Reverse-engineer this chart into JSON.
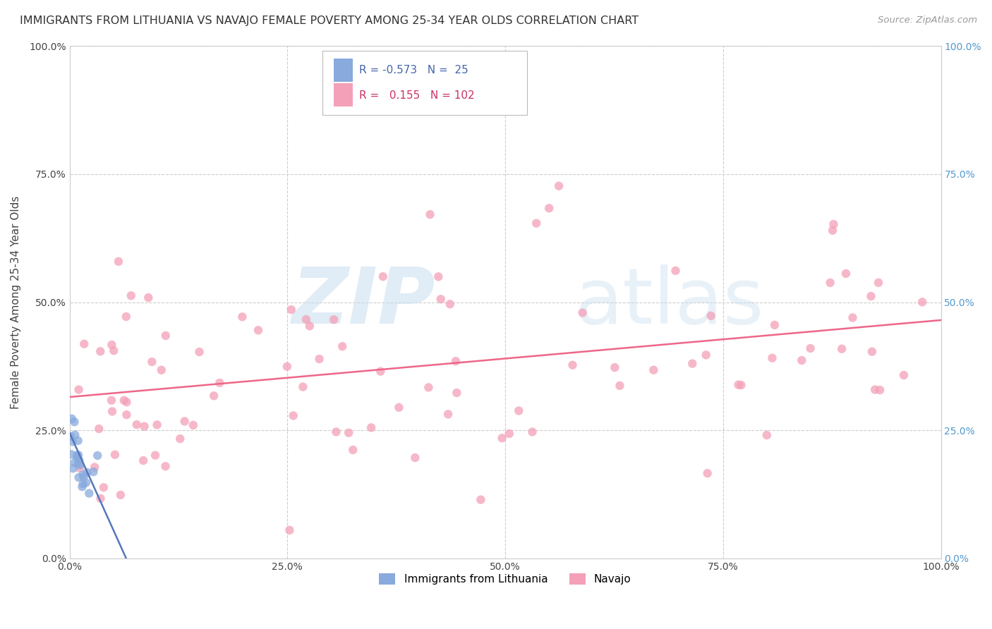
{
  "title": "IMMIGRANTS FROM LITHUANIA VS NAVAJO FEMALE POVERTY AMONG 25-34 YEAR OLDS CORRELATION CHART",
  "source": "Source: ZipAtlas.com",
  "ylabel": "Female Poverty Among 25-34 Year Olds",
  "xlim": [
    0.0,
    1.0
  ],
  "ylim": [
    0.0,
    1.0
  ],
  "tick_vals": [
    0.0,
    0.25,
    0.5,
    0.75,
    1.0
  ],
  "tick_labels": [
    "0.0%",
    "25.0%",
    "50.0%",
    "75.0%",
    "100.0%"
  ],
  "legend_entries": [
    {
      "label": "Immigrants from Lithuania",
      "color": "#aac8e8",
      "R": "-0.573",
      "N": "25"
    },
    {
      "label": "Navajo",
      "color": "#f4a0b8",
      "R": "0.155",
      "N": "102"
    }
  ],
  "background_color": "#ffffff",
  "grid_color": "#cccccc",
  "blue_color": "#88aadd",
  "pink_color": "#f4a0b8",
  "blue_line_color": "#5577bb",
  "pink_line_color": "#ee6688",
  "pink_line_x": [
    0.0,
    1.0
  ],
  "pink_line_y": [
    0.315,
    0.465
  ],
  "blue_line_x": [
    0.0,
    0.065
  ],
  "blue_line_y": [
    0.245,
    0.0
  ],
  "right_label_color": "#5599cc",
  "scatter_size": 80,
  "scatter_alpha": 0.75
}
